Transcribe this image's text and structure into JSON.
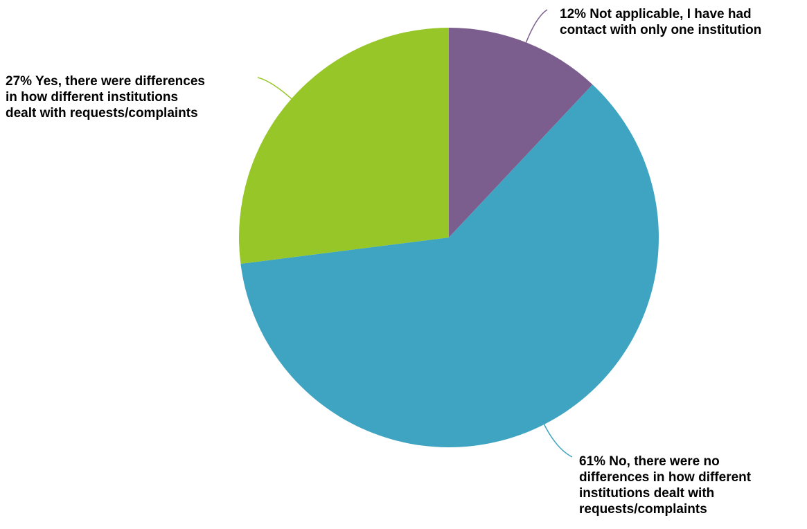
{
  "chart_data": {
    "type": "pie",
    "title": "",
    "slices": [
      {
        "label": "Not applicable, I have had contact with only one institution",
        "value": 12,
        "color": "#7B5E8D",
        "label_lines": [
          "12% Not applicable, I have had",
          "contact with only one institution"
        ]
      },
      {
        "label": "No, there were no differences in how different institutions dealt with requests/complaints",
        "value": 61,
        "color": "#3FA3C2",
        "label_lines": [
          "61% No, there were no",
          "differences in how different",
          "institutions dealt with",
          "requests/complaints"
        ]
      },
      {
        "label": "Yes, there were differences in how different institutions dealt with requests/complaints",
        "value": 27,
        "color": "#96C628",
        "label_lines": [
          "27% Yes, there were differences",
          "in how different institutions",
          "dealt with requests/complaints"
        ]
      }
    ],
    "start_angle": "12 o'clock",
    "direction": "clockwise",
    "legend": "none"
  }
}
